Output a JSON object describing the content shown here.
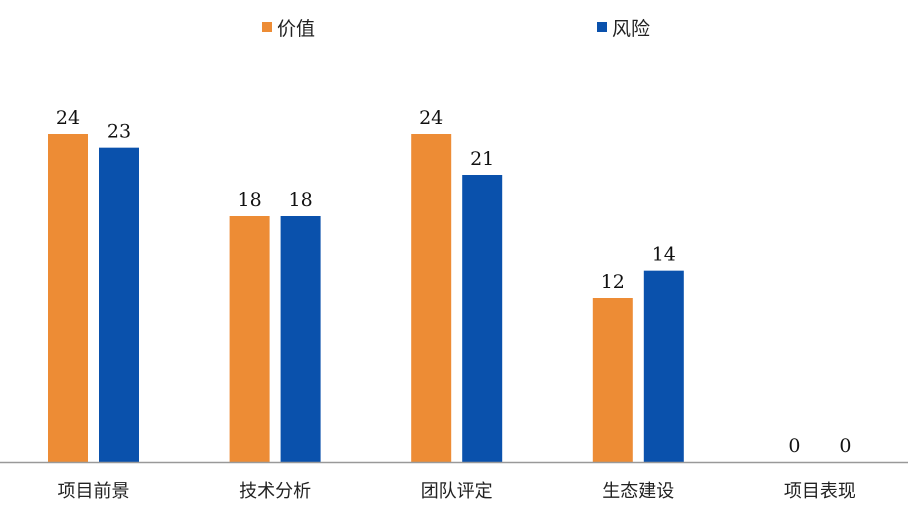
{
  "chart_data": {
    "type": "bar",
    "categories": [
      "项目前景",
      "技术分析",
      "团队评定",
      "生态建设",
      "项目表现"
    ],
    "series": [
      {
        "name": "价值",
        "values": [
          24,
          18,
          24,
          12,
          0
        ],
        "color": "#ED8C35"
      },
      {
        "name": "风险",
        "values": [
          23,
          18,
          21,
          14,
          0
        ],
        "color": "#0A51AC"
      }
    ],
    "title": "",
    "xlabel": "",
    "ylabel": "",
    "ylim": [
      0,
      24
    ],
    "grid": false,
    "legend_position": "top-center",
    "axis_color": "#999999"
  }
}
